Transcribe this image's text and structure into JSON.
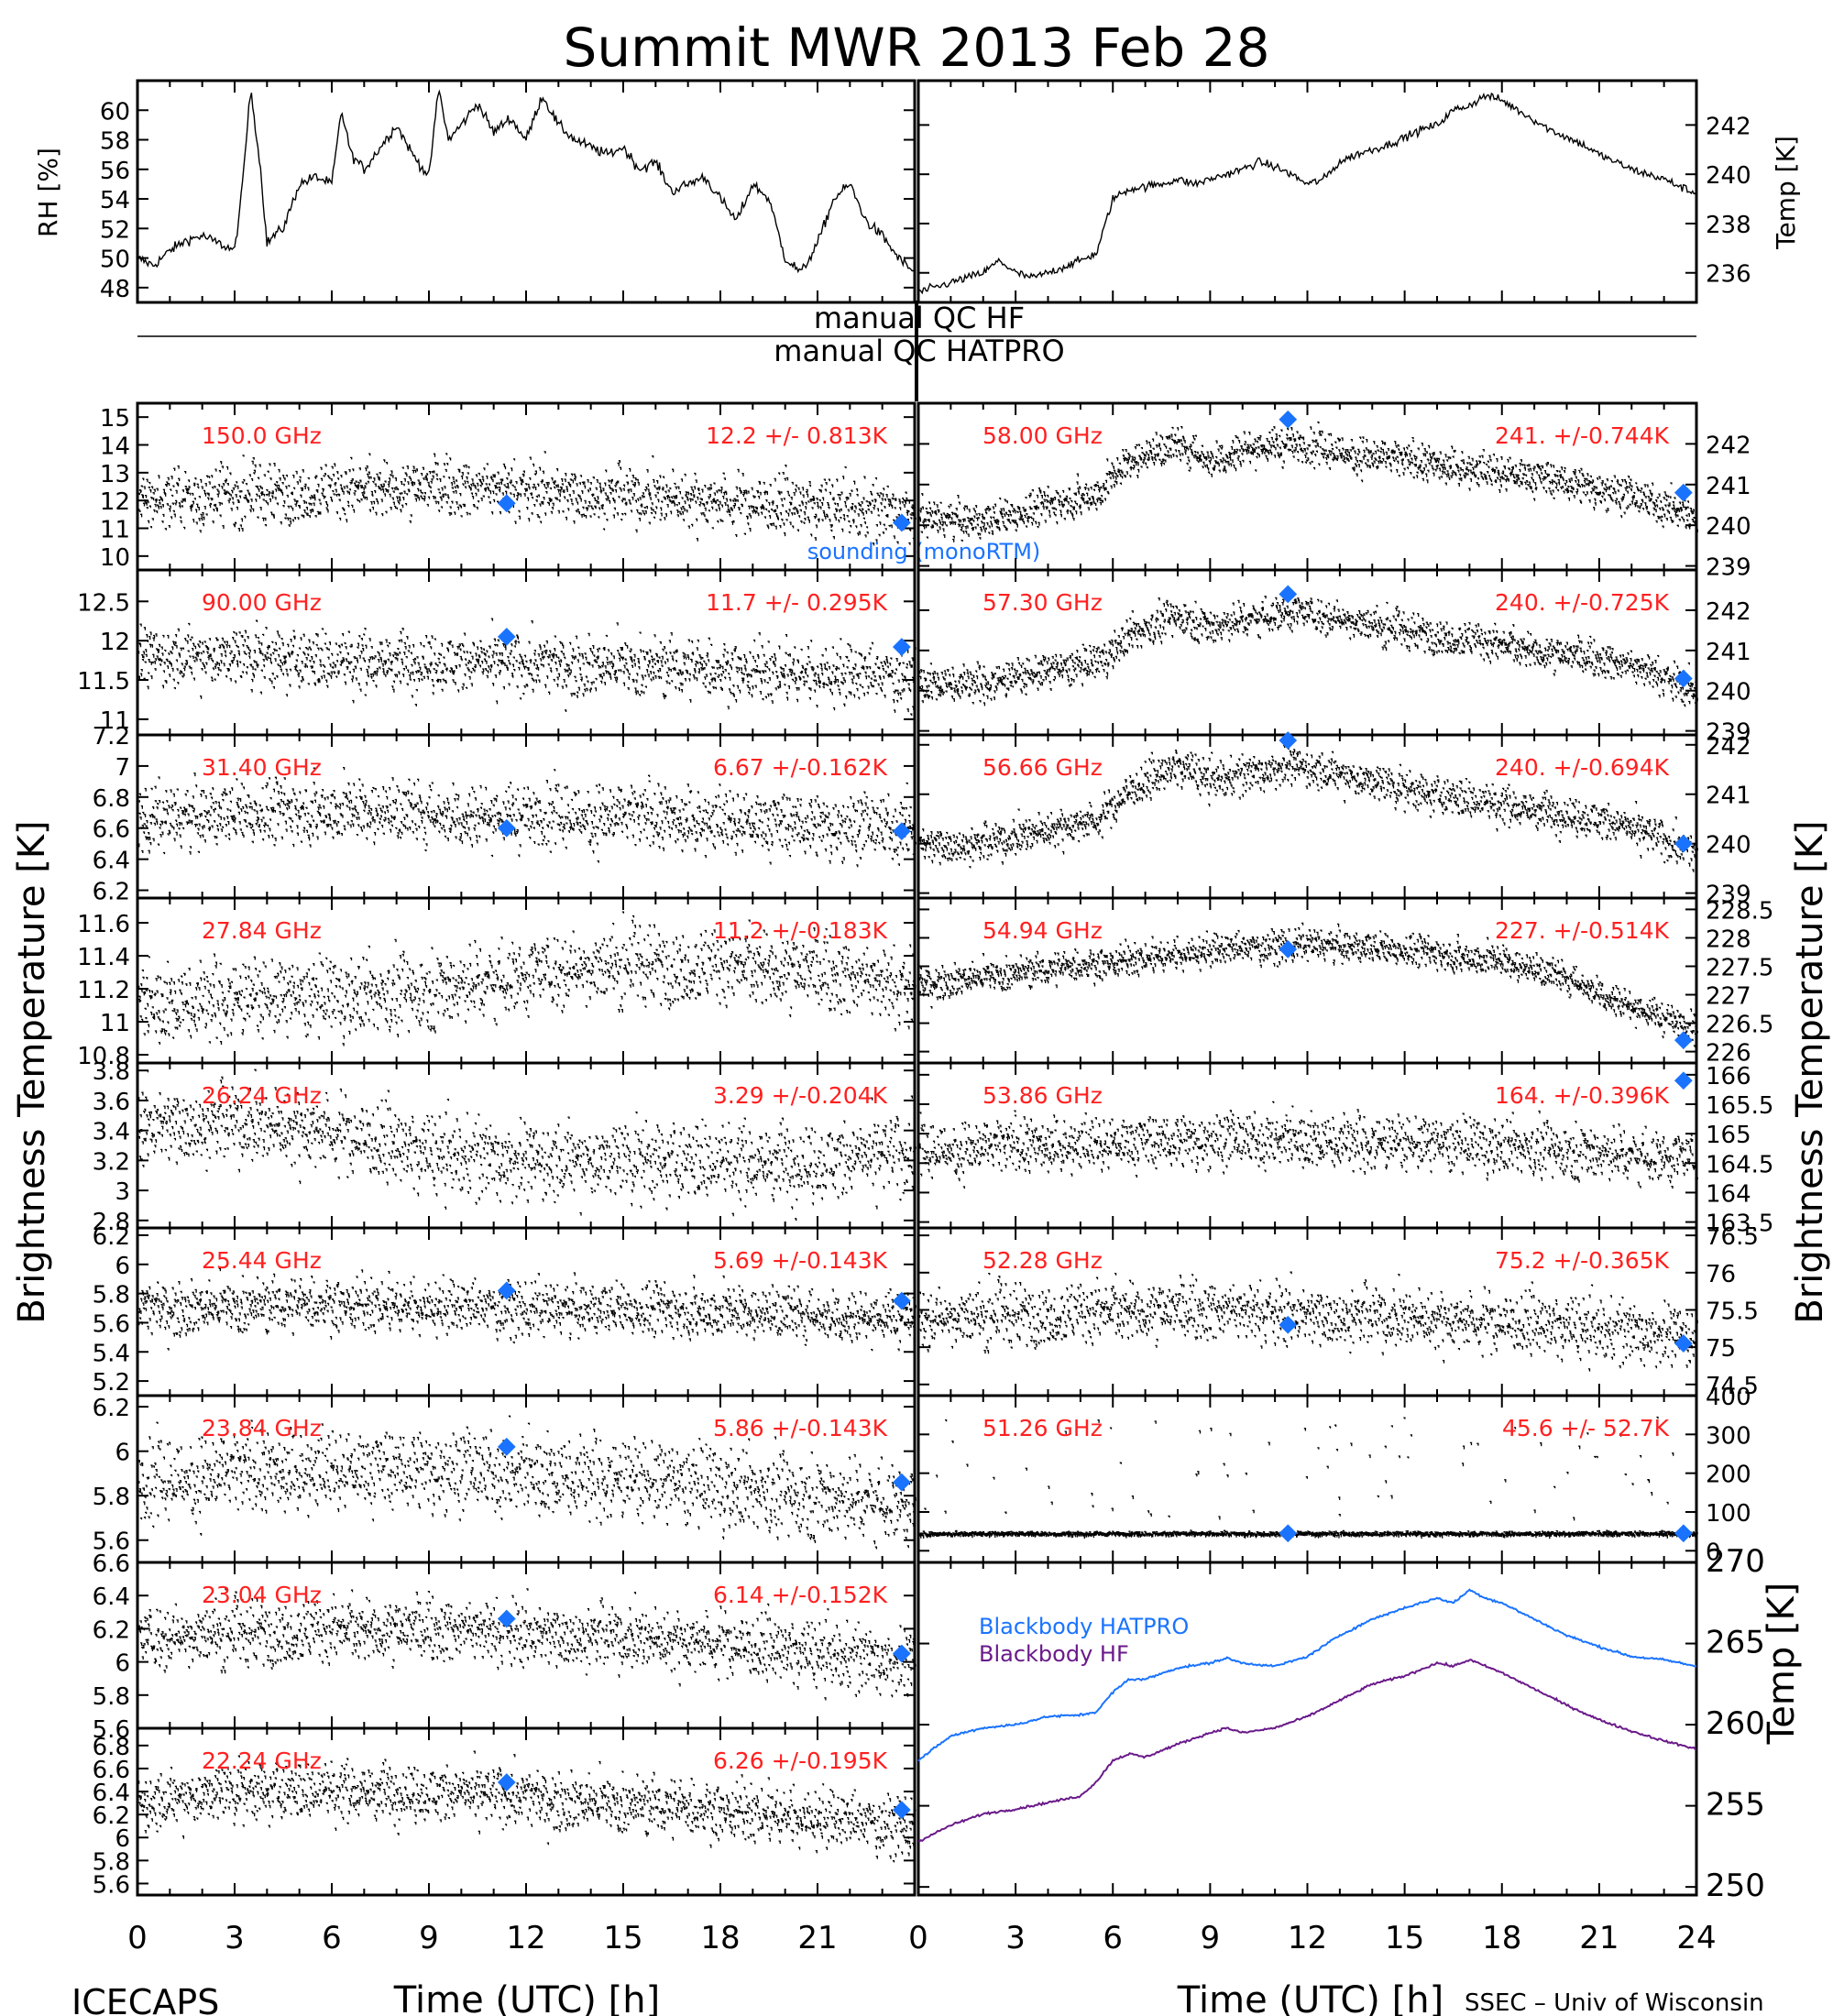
{
  "title": "Summit MWR 2013 Feb 28",
  "colors": {
    "stats": "#ff2020",
    "sounding": "#1a73ff",
    "hatpro": "#1a73ff",
    "hf": "#6a1a8a",
    "trace": "#000000"
  },
  "qc": {
    "hf": "manual QC HF",
    "hatpro": "manual QC HATPRO"
  },
  "footer": {
    "left": "ICECAPS",
    "right": "SSEC – Univ of Wisconsin"
  },
  "axes": {
    "time_label": "Time (UTC) [h]",
    "bt_label": "Brightness Temperature [K]"
  },
  "chart_data": [
    {
      "type": "line",
      "panel": "rh",
      "ylabel": "RH [%]",
      "ylim": [
        47,
        62
      ],
      "ticks": [
        48,
        50,
        52,
        54,
        56,
        58,
        60
      ],
      "xlim": [
        0,
        24
      ],
      "x": [
        0,
        0.5,
        1,
        1.5,
        2,
        2.5,
        3,
        3.2,
        3.5,
        3.8,
        4,
        4.2,
        4.5,
        5,
        5.5,
        6,
        6.3,
        6.6,
        7,
        7.5,
        8,
        8.5,
        9,
        9.3,
        9.6,
        10,
        10.5,
        11,
        11.5,
        12,
        12.5,
        13,
        13.5,
        14,
        14.5,
        15,
        15.5,
        16,
        16.5,
        17,
        17.5,
        18,
        18.5,
        19,
        19.5,
        20,
        20.5,
        21,
        21.5,
        22,
        22.5,
        23,
        23.5,
        24
      ],
      "y": [
        50,
        49.5,
        50.5,
        51.2,
        51.5,
        51.0,
        50.5,
        54,
        61.5,
        56,
        51,
        51.5,
        52,
        55,
        55.5,
        55,
        60,
        57,
        56,
        57.5,
        59,
        57,
        55.5,
        61.5,
        58,
        59,
        60.5,
        58.5,
        59.5,
        58,
        61,
        59,
        58,
        57.5,
        57,
        57.5,
        56,
        56.5,
        54.5,
        55,
        55.5,
        54,
        52.5,
        55,
        54,
        50,
        49,
        51,
        54,
        55,
        52.5,
        51.5,
        50,
        49
      ]
    },
    {
      "type": "line",
      "panel": "temp",
      "ylabel": "Temp [K]",
      "ylim": [
        234.8,
        243.8
      ],
      "ticks": [
        236,
        238,
        240,
        242
      ],
      "xlim": [
        0,
        24
      ],
      "x": [
        0,
        1,
        2,
        2.5,
        3,
        3.5,
        4,
        5,
        5.5,
        6,
        6.5,
        7,
        7.5,
        8,
        8.5,
        9,
        9.5,
        10,
        10.5,
        11,
        11.5,
        12,
        12.5,
        13,
        13.5,
        14,
        14.5,
        15,
        15.5,
        16,
        16.5,
        17,
        17.5,
        18,
        18.5,
        19,
        19.5,
        20,
        20.5,
        21,
        21.5,
        22,
        22.5,
        23,
        23.5,
        24
      ],
      "y": [
        235.2,
        235.6,
        236.0,
        236.5,
        236.0,
        235.8,
        236.0,
        236.5,
        236.8,
        239.0,
        239.4,
        239.5,
        239.6,
        239.8,
        239.6,
        239.8,
        240.0,
        240.2,
        240.5,
        240.3,
        240.0,
        239.6,
        239.8,
        240.5,
        240.8,
        241.0,
        241.2,
        241.5,
        241.8,
        242.0,
        242.6,
        242.8,
        243.2,
        243.0,
        242.6,
        242.2,
        241.8,
        241.5,
        241.2,
        240.8,
        240.5,
        240.2,
        240.0,
        239.8,
        239.5,
        239.2
      ]
    },
    {
      "type": "scatter",
      "panel": "hf-1",
      "freq": "150.0 GHz",
      "stat": "12.2 +/- 0.813K",
      "ylim": [
        9.5,
        15.5
      ],
      "ticks": [
        10,
        11,
        12,
        13,
        14,
        15
      ],
      "noise": 0.813,
      "x": [
        0,
        3,
        6,
        9,
        12,
        15,
        18,
        21,
        24
      ],
      "y": [
        12.0,
        12.2,
        12.4,
        12.5,
        12.4,
        12.2,
        12.0,
        11.8,
        11.6
      ],
      "sounding": [
        [
          11.4,
          11.9
        ],
        [
          23.6,
          11.2
        ]
      ],
      "note": "sounding (monoRTM)"
    },
    {
      "type": "scatter",
      "panel": "hf-2",
      "freq": "90.00 GHz",
      "stat": "11.7 +/- 0.295K",
      "ylim": [
        10.8,
        12.9
      ],
      "ticks": [
        11.0,
        11.5,
        12.0,
        12.5
      ],
      "noise": 0.295,
      "x": [
        0,
        3,
        6,
        9,
        12,
        15,
        18,
        21,
        24
      ],
      "y": [
        11.8,
        11.8,
        11.75,
        11.75,
        11.7,
        11.7,
        11.65,
        11.6,
        11.55
      ],
      "sounding": [
        [
          11.4,
          12.05
        ],
        [
          23.6,
          11.92
        ]
      ]
    },
    {
      "type": "scatter",
      "panel": "hf-3",
      "freq": "31.40 GHz",
      "stat": "6.67 +/-0.162K",
      "ylim": [
        6.15,
        7.2
      ],
      "ticks": [
        6.2,
        6.4,
        6.6,
        6.8,
        7.0,
        7.2
      ],
      "noise": 0.162,
      "x": [
        0,
        3,
        6,
        9,
        12,
        15,
        18,
        21,
        24
      ],
      "y": [
        6.65,
        6.7,
        6.72,
        6.7,
        6.68,
        6.68,
        6.65,
        6.62,
        6.6
      ],
      "sounding": [
        [
          11.4,
          6.6
        ],
        [
          23.6,
          6.58
        ]
      ]
    },
    {
      "type": "scatter",
      "panel": "hf-4",
      "freq": "27.84 GHz",
      "stat": "11.2 +/-0.183K",
      "ylim": [
        10.75,
        11.75
      ],
      "ticks": [
        10.8,
        11.0,
        11.2,
        11.4,
        11.6
      ],
      "noise": 0.183,
      "x": [
        0,
        3,
        6,
        9,
        12,
        15,
        18,
        21,
        24
      ],
      "y": [
        11.1,
        11.15,
        11.15,
        11.2,
        11.3,
        11.35,
        11.35,
        11.3,
        11.2
      ],
      "sounding": []
    },
    {
      "type": "scatter",
      "panel": "hf-5",
      "freq": "26.24 GHz",
      "stat": "3.29 +/-0.204K",
      "ylim": [
        2.75,
        3.85
      ],
      "ticks": [
        2.8,
        3.0,
        3.2,
        3.4,
        3.6,
        3.8
      ],
      "noise": 0.204,
      "x": [
        0,
        3,
        6,
        9,
        12,
        15,
        18,
        21,
        24
      ],
      "y": [
        3.45,
        3.45,
        3.4,
        3.25,
        3.2,
        3.2,
        3.2,
        3.2,
        3.25
      ],
      "sounding": []
    },
    {
      "type": "scatter",
      "panel": "hf-6",
      "freq": "25.44 GHz",
      "stat": "5.69 +/-0.143K",
      "ylim": [
        5.1,
        6.25
      ],
      "ticks": [
        5.2,
        5.4,
        5.6,
        5.8,
        6.0,
        6.2
      ],
      "noise": 0.143,
      "x": [
        0,
        3,
        6,
        9,
        12,
        15,
        18,
        21,
        24
      ],
      "y": [
        5.7,
        5.72,
        5.74,
        5.72,
        5.7,
        5.7,
        5.68,
        5.66,
        5.64
      ],
      "sounding": [
        [
          11.4,
          5.82
        ],
        [
          23.6,
          5.75
        ]
      ]
    },
    {
      "type": "scatter",
      "panel": "hf-7",
      "freq": "23.84 GHz",
      "stat": "5.86 +/-0.143K",
      "ylim": [
        5.5,
        6.25
      ],
      "ticks": [
        5.6,
        5.8,
        6.0,
        6.2
      ],
      "noise": 0.143,
      "x": [
        0,
        3,
        6,
        9,
        12,
        15,
        18,
        21,
        24
      ],
      "y": [
        5.86,
        5.9,
        5.92,
        5.92,
        5.9,
        5.88,
        5.84,
        5.8,
        5.78
      ],
      "sounding": [
        [
          11.4,
          6.02
        ],
        [
          23.6,
          5.86
        ]
      ]
    },
    {
      "type": "scatter",
      "panel": "hf-8",
      "freq": "23.04 GHz",
      "stat": "6.14 +/-0.152K",
      "ylim": [
        5.6,
        6.6
      ],
      "ticks": [
        5.6,
        5.8,
        6.0,
        6.2,
        6.4,
        6.6
      ],
      "noise": 0.152,
      "x": [
        0,
        3,
        6,
        9,
        12,
        15,
        18,
        21,
        24
      ],
      "y": [
        6.15,
        6.18,
        6.2,
        6.2,
        6.18,
        6.15,
        6.12,
        6.05,
        6.0
      ],
      "sounding": [
        [
          11.4,
          6.26
        ],
        [
          23.6,
          6.05
        ]
      ]
    },
    {
      "type": "scatter",
      "panel": "hf-9",
      "freq": "22.24 GHz",
      "stat": "6.26 +/-0.195K",
      "ylim": [
        5.5,
        6.95
      ],
      "ticks": [
        5.6,
        5.8,
        6.0,
        6.2,
        6.4,
        6.6,
        6.8
      ],
      "noise": 0.195,
      "x": [
        0,
        3,
        6,
        9,
        12,
        15,
        18,
        21,
        24
      ],
      "y": [
        6.3,
        6.4,
        6.42,
        6.4,
        6.35,
        6.3,
        6.25,
        6.18,
        6.1
      ],
      "sounding": [
        [
          11.4,
          6.48
        ],
        [
          23.6,
          6.24
        ]
      ]
    },
    {
      "type": "scatter",
      "panel": "hatpro-1",
      "freq": "58.00 GHz",
      "stat": "241. +/-0.744K",
      "ylim": [
        238.9,
        243.0
      ],
      "ticks": [
        239,
        240,
        241,
        242
      ],
      "noise": 0.35,
      "x": [
        0,
        2,
        4,
        5.5,
        6.5,
        8,
        9,
        10,
        11.5,
        13,
        15,
        17,
        19,
        21,
        22.5,
        24
      ],
      "y": [
        240.2,
        240.1,
        240.5,
        240.8,
        241.6,
        242.0,
        241.6,
        241.9,
        242.0,
        241.8,
        241.6,
        241.4,
        241.2,
        240.9,
        240.6,
        240.2
      ],
      "sounding": [
        [
          11.4,
          242.6
        ],
        [
          23.6,
          240.8
        ]
      ]
    },
    {
      "type": "scatter",
      "panel": "hatpro-2",
      "freq": "57.30 GHz",
      "stat": "240. +/-0.725K",
      "ylim": [
        238.9,
        243.0
      ],
      "ticks": [
        239,
        240,
        241,
        242
      ],
      "noise": 0.35,
      "x": [
        0,
        2,
        4,
        5.5,
        6.5,
        8,
        9,
        10,
        11.5,
        13,
        15,
        17,
        19,
        21,
        22.5,
        24
      ],
      "y": [
        240.2,
        240.2,
        240.5,
        240.7,
        241.4,
        241.9,
        241.6,
        241.8,
        242.0,
        241.8,
        241.5,
        241.3,
        241.0,
        240.8,
        240.5,
        240.0
      ],
      "sounding": [
        [
          11.4,
          242.4
        ],
        [
          23.6,
          240.3
        ]
      ]
    },
    {
      "type": "scatter",
      "panel": "hatpro-3",
      "freq": "56.66 GHz",
      "stat": "240. +/-0.694K",
      "ylim": [
        238.9,
        242.2
      ],
      "ticks": [
        239,
        240,
        241,
        242
      ],
      "noise": 0.3,
      "x": [
        0,
        2,
        4,
        5.5,
        6.5,
        8,
        9,
        10,
        11.5,
        13,
        15,
        17,
        19,
        21,
        22.5,
        24
      ],
      "y": [
        240.0,
        240.0,
        240.3,
        240.5,
        241.1,
        241.6,
        241.3,
        241.4,
        241.6,
        241.4,
        241.1,
        240.9,
        240.7,
        240.5,
        240.2,
        239.8
      ],
      "sounding": [
        [
          11.4,
          242.1
        ],
        [
          23.6,
          240.0
        ]
      ]
    },
    {
      "type": "scatter",
      "panel": "hatpro-4",
      "freq": "54.94 GHz",
      "stat": "227. +/-0.514K",
      "ylim": [
        225.8,
        228.7
      ],
      "ticks": [
        226.0,
        226.5,
        227.0,
        227.5,
        228.0,
        228.5
      ],
      "noise": 0.22,
      "x": [
        0,
        3,
        6,
        9,
        12,
        15,
        18,
        20,
        22,
        24
      ],
      "y": [
        227.2,
        227.4,
        227.6,
        227.8,
        227.9,
        227.8,
        227.6,
        227.3,
        226.8,
        226.4
      ],
      "sounding": [
        [
          11.4,
          227.8
        ],
        [
          23.6,
          226.2
        ]
      ]
    },
    {
      "type": "scatter",
      "panel": "hatpro-5",
      "freq": "53.86 GHz",
      "stat": "164. +/-0.396K",
      "ylim": [
        163.4,
        166.2
      ],
      "ticks": [
        163.5,
        164.0,
        164.5,
        165.0,
        165.5,
        166.0
      ],
      "noise": 0.36,
      "x": [
        0,
        3,
        6,
        9,
        12,
        15,
        18,
        21,
        24
      ],
      "y": [
        164.7,
        164.8,
        164.85,
        164.9,
        164.9,
        164.85,
        164.8,
        164.7,
        164.6
      ],
      "sounding": [
        [
          23.6,
          165.9
        ]
      ]
    },
    {
      "type": "scatter",
      "panel": "hatpro-6",
      "freq": "52.28 GHz",
      "stat": "75.2 +/-0.365K",
      "ylim": [
        74.35,
        76.6
      ],
      "ticks": [
        74.5,
        75.0,
        75.5,
        76.0,
        76.5
      ],
      "noise": 0.32,
      "x": [
        0,
        3,
        6,
        9,
        12,
        15,
        18,
        21,
        24
      ],
      "y": [
        75.4,
        75.45,
        75.5,
        75.5,
        75.45,
        75.4,
        75.35,
        75.25,
        75.15
      ],
      "sounding": [
        [
          11.4,
          75.3
        ],
        [
          23.6,
          75.05
        ]
      ]
    },
    {
      "type": "scatter",
      "panel": "hatpro-7",
      "freq": "51.26 GHz",
      "stat": "45.6 +/- 52.7K",
      "ylim": [
        -30,
        400
      ],
      "ticks": [
        0,
        100,
        200,
        300,
        400
      ],
      "noise": 4,
      "x": [
        0,
        24
      ],
      "y": [
        45,
        45
      ],
      "spikes": true,
      "sounding": [
        [
          11.4,
          45
        ],
        [
          23.6,
          45
        ]
      ]
    },
    {
      "type": "line",
      "panel": "blackbody",
      "ylabel": "Temp [K]",
      "ylim": [
        249.5,
        270
      ],
      "ticks": [
        250,
        255,
        260,
        265,
        270
      ],
      "xlim": [
        0,
        24
      ],
      "series": [
        {
          "name": "Blackbody HATPRO",
          "x": [
            0,
            1,
            2,
            3,
            4,
            5,
            5.5,
            6,
            6.5,
            7,
            8,
            9,
            9.5,
            10,
            11,
            12,
            13,
            14,
            15,
            16,
            16.5,
            17,
            17.5,
            18,
            19,
            20,
            21,
            22,
            23,
            24
          ],
          "y": [
            257.8,
            259.3,
            259.8,
            260.0,
            260.5,
            260.6,
            260.8,
            262.0,
            262.8,
            262.8,
            263.5,
            263.8,
            264.1,
            263.8,
            263.6,
            264.2,
            265.5,
            266.5,
            267.2,
            267.8,
            267.5,
            268.3,
            267.8,
            267.5,
            266.5,
            265.5,
            264.8,
            264.2,
            264.0,
            263.6
          ]
        },
        {
          "name": "Blackbody HF",
          "x": [
            0,
            1,
            2,
            3,
            4,
            5,
            5.5,
            6,
            6.5,
            7,
            8,
            9,
            9.5,
            10,
            11,
            12,
            13,
            14,
            15,
            16,
            16.5,
            17,
            17.5,
            18,
            19,
            20,
            21,
            22,
            23,
            24
          ],
          "y": [
            252.8,
            253.8,
            254.5,
            254.8,
            255.2,
            255.6,
            256.5,
            257.8,
            258.2,
            258.0,
            258.8,
            259.5,
            259.8,
            259.5,
            259.8,
            260.5,
            261.5,
            262.5,
            263.0,
            263.8,
            263.6,
            264.0,
            263.6,
            263.2,
            262.2,
            261.2,
            260.3,
            259.6,
            259.0,
            258.5
          ]
        }
      ]
    }
  ],
  "x_ticks": {
    "left": [
      "0",
      "3",
      "6",
      "9",
      "12",
      "15",
      "18",
      "21",
      ""
    ],
    "right": [
      "0",
      "3",
      "6",
      "9",
      "12",
      "15",
      "18",
      "21",
      "24"
    ]
  }
}
